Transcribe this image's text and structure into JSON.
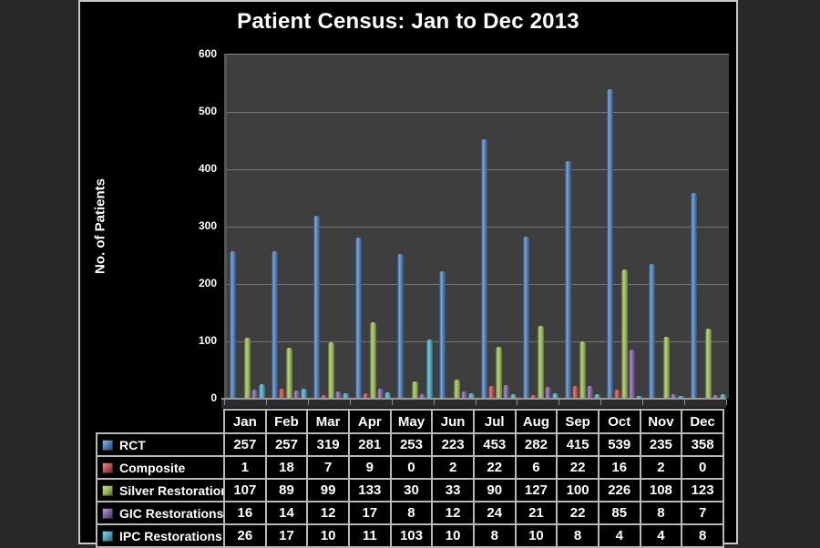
{
  "chart_data": {
    "type": "bar",
    "title": "Patient Census: Jan to Dec 2013",
    "xlabel": "",
    "ylabel": "No. of Patients",
    "ylim": [
      0,
      600
    ],
    "ytick_step": 100,
    "grid": true,
    "legend_position": "table-row-labels-left",
    "background_color": "#000000",
    "plot_background_color": "#3e3e3e",
    "categories": [
      "Jan",
      "Feb",
      "Mar",
      "Apr",
      "May",
      "Jun",
      "Jul",
      "Aug",
      "Sep",
      "Oct",
      "Nov",
      "Dec"
    ],
    "series": [
      {
        "name": "RCT",
        "color": "#4f81bd",
        "values": [
          257,
          257,
          319,
          281,
          253,
          223,
          453,
          282,
          415,
          539,
          235,
          358
        ]
      },
      {
        "name": "Composite",
        "color": "#c0504d",
        "values": [
          1,
          18,
          7,
          9,
          0,
          2,
          22,
          6,
          22,
          16,
          2,
          0
        ]
      },
      {
        "name": "Silver Restorations",
        "color": "#9bbb59",
        "values": [
          107,
          89,
          99,
          133,
          30,
          33,
          90,
          127,
          100,
          226,
          108,
          123
        ]
      },
      {
        "name": "GIC Restorations",
        "color": "#8064a2",
        "values": [
          16,
          14,
          12,
          17,
          8,
          12,
          24,
          21,
          22,
          85,
          8,
          7
        ]
      },
      {
        "name": "IPC Restorations",
        "color": "#4bacc6",
        "values": [
          26,
          17,
          10,
          11,
          103,
          10,
          8,
          10,
          8,
          4,
          4,
          8
        ]
      }
    ]
  }
}
